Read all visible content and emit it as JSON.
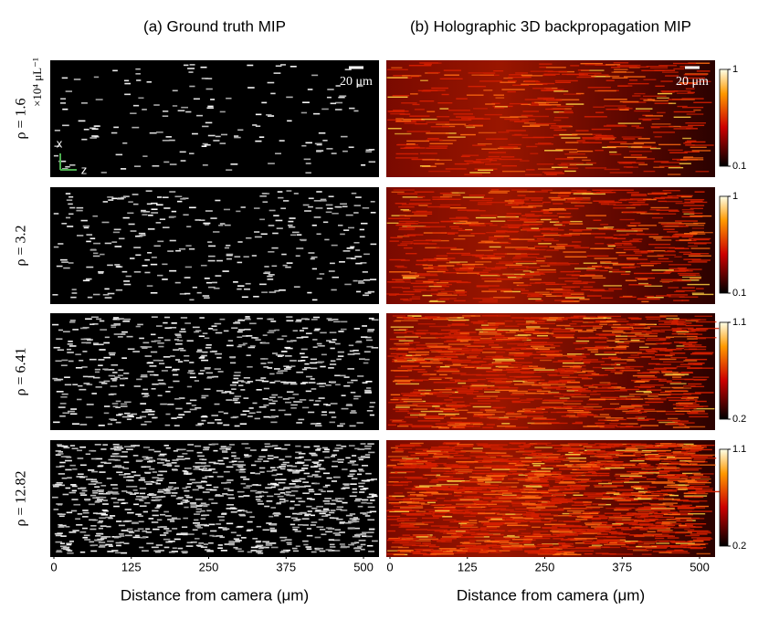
{
  "column_titles": [
    "(a) Ground truth MIP",
    "(b) Holographic 3D backpropagation MIP"
  ],
  "density_unit": "×10⁴ μL⁻¹",
  "scale_bar": "20 μm",
  "axes_icon": [
    "x",
    "z"
  ],
  "rows": [
    {
      "label": "ρ = 1.6",
      "colorbar": {
        "lim": [
          0.1,
          1
        ],
        "ticks": [
          1,
          0.1
        ]
      }
    },
    {
      "label": "ρ = 3.2",
      "colorbar": {
        "lim": [
          0.1,
          1
        ],
        "ticks": [
          1,
          0.1
        ]
      }
    },
    {
      "label": "ρ = 6.41",
      "colorbar": {
        "lim": [
          0.2,
          1.1
        ],
        "ticks": [
          1.1,
          0.2
        ]
      }
    },
    {
      "label": "ρ = 12.82",
      "colorbar": {
        "lim": [
          0.2,
          1.1
        ],
        "ticks": [
          1.1,
          0.2
        ]
      }
    }
  ],
  "x_axis": {
    "label": "Distance from camera (μm)",
    "xlim": [
      0,
      525
    ],
    "xticks": [
      0,
      125,
      250,
      375,
      500
    ]
  }
}
